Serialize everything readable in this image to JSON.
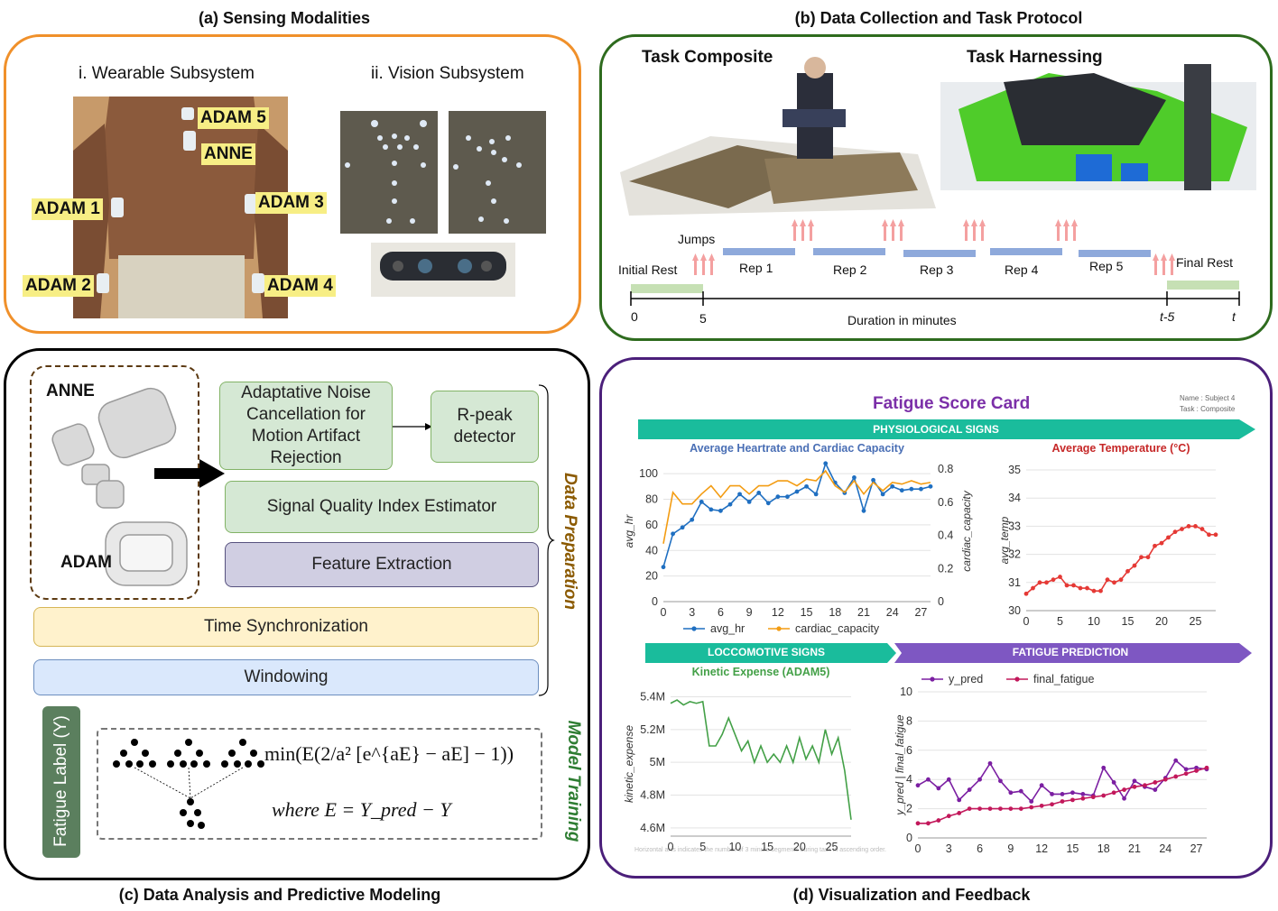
{
  "panel_a": {
    "title": "(a) Sensing Modalities",
    "wearable_title": "i. Wearable Subsystem",
    "vision_title": "ii. Vision Subsystem",
    "sensors": [
      "ADAM 5",
      "ANNE",
      "ADAM 1",
      "ADAM 3",
      "ADAM 2",
      "ADAM 4"
    ],
    "colors": {
      "border": "#f0902a",
      "tag": "#f7ee85"
    }
  },
  "panel_b": {
    "title": "(b) Data Collection and Task Protocol",
    "task1": "Task Composite",
    "task2": "Task Harnessing",
    "jumps": "Jumps",
    "initial_rest": "Initial Rest",
    "final_rest": "Final Rest",
    "reps": [
      "Rep 1",
      "Rep 2",
      "Rep 3",
      "Rep 4",
      "Rep 5"
    ],
    "ticks": [
      "0",
      "5",
      "t-5",
      "t"
    ],
    "duration_label": "Duration in minutes",
    "colors": {
      "border": "#2e6b1e",
      "rep": "#8ea9db",
      "rest": "#c6e0b4",
      "arrow": "#f4a0a0"
    }
  },
  "panel_c": {
    "title": "(c) Data Analysis and Predictive Modeling",
    "anne": "ANNE",
    "adam": "ADAM",
    "anc": "Adaptative Noise Cancellation for Motion Artifact Rejection",
    "rpeak": "R-peak detector",
    "sqi": "Signal Quality Index Estimator",
    "feature": "Feature Extraction",
    "sync": "Time Synchronization",
    "windowing": "Windowing",
    "data_prep": "Data Preparation",
    "model_training": "Model Training",
    "fatigue_label": "Fatigue Label (Y)",
    "formula_main": "min(E(2/a² [e^{aE} − aE] − 1))",
    "formula_where": "where E = Y_pred − Y",
    "colors": {
      "data_prep": "#8b5a00",
      "model_training": "#2e7d32",
      "label_box": "#5b7f5e"
    }
  },
  "panel_d": {
    "title": "(d) Visualization and Feedback",
    "card_title": "Fatigue Score Card",
    "meta_name": "Name : Subject 4",
    "meta_task": "Task : Composite",
    "physio_banner": "PHYSIOLOGICAL SIGNS",
    "loco_banner": "LOCCOMOTIVE SIGNS",
    "fatigue_banner": "FATIGUE PREDICTION",
    "footnote": "Horizontal axis indicates the number of 3 minute segments during task in ascending order.",
    "colors": {
      "border": "#4b1f7a",
      "teal": "#1abc9c",
      "purple": "#7e57c2",
      "title": "#7b2fa8"
    }
  },
  "chart_data": [
    {
      "type": "line",
      "title": "Average Heartrate and Cardiac Capacity",
      "ylabel": "avg_hr",
      "y2label": "cardiac_capacity",
      "xticks": [
        "0",
        "3",
        "6",
        "9",
        "12",
        "15",
        "18",
        "21",
        "24",
        "27"
      ],
      "yticks": [
        "0",
        "20",
        "40",
        "60",
        "80",
        "100"
      ],
      "y2ticks": [
        "0",
        "0.2",
        "0.4",
        "0.6",
        "0.8"
      ],
      "ylim": [
        0,
        110
      ],
      "y2lim": [
        0,
        0.85
      ],
      "x": [
        0,
        1,
        2,
        3,
        4,
        5,
        6,
        7,
        8,
        9,
        10,
        11,
        12,
        13,
        14,
        15,
        16,
        17,
        18,
        19,
        20,
        21,
        22,
        23,
        24,
        25,
        26,
        27,
        28
      ],
      "series": [
        {
          "name": "avg_hr",
          "color": "#1f6fc1",
          "axis": "left",
          "values": [
            27,
            53,
            58,
            64,
            78,
            72,
            71,
            76,
            84,
            78,
            85,
            77,
            82,
            82,
            86,
            90,
            84,
            108,
            93,
            85,
            97,
            71,
            95,
            84,
            90,
            87,
            88,
            88,
            90
          ]
        },
        {
          "name": "cardiac_capacity",
          "color": "#f39c12",
          "axis": "right",
          "values": [
            0.35,
            0.66,
            0.59,
            0.59,
            0.65,
            0.7,
            0.63,
            0.7,
            0.7,
            0.65,
            0.7,
            0.7,
            0.73,
            0.73,
            0.7,
            0.74,
            0.73,
            0.79,
            0.7,
            0.66,
            0.73,
            0.65,
            0.72,
            0.67,
            0.72,
            0.71,
            0.73,
            0.71,
            0.72
          ]
        }
      ],
      "legend": "bottom"
    },
    {
      "type": "line",
      "title": "Average Temperature (°C)",
      "ylabel": "avg_temp",
      "xticks": [
        "0",
        "5",
        "10",
        "15",
        "20",
        "25"
      ],
      "yticks": [
        "30",
        "31",
        "32",
        "33",
        "34",
        "35"
      ],
      "ylim": [
        30,
        35
      ],
      "x": [
        0,
        1,
        2,
        3,
        4,
        5,
        6,
        7,
        8,
        9,
        10,
        11,
        12,
        13,
        14,
        15,
        16,
        17,
        18,
        19,
        20,
        21,
        22,
        23,
        24,
        25,
        26,
        27,
        28
      ],
      "series": [
        {
          "name": "avg_temp",
          "color": "#e53935",
          "values": [
            30.6,
            30.8,
            31.0,
            31.0,
            31.1,
            31.2,
            30.9,
            30.9,
            30.8,
            30.8,
            30.7,
            30.7,
            31.1,
            31.0,
            31.1,
            31.4,
            31.6,
            31.9,
            31.9,
            32.3,
            32.4,
            32.6,
            32.8,
            32.9,
            33.0,
            33.0,
            32.9,
            32.7,
            32.7
          ]
        }
      ]
    },
    {
      "type": "line",
      "title": "Kinetic Expense (ADAM5)",
      "ylabel": "kinetic_expense",
      "xticks": [
        "0",
        "5",
        "10",
        "15",
        "20",
        "25"
      ],
      "yticks": [
        "4.6M",
        "4.8M",
        "5M",
        "5.2M",
        "5.4M"
      ],
      "ylim": [
        4.55,
        5.43
      ],
      "x": [
        0,
        1,
        2,
        3,
        4,
        5,
        6,
        7,
        8,
        9,
        10,
        11,
        12,
        13,
        14,
        15,
        16,
        17,
        18,
        19,
        20,
        21,
        22,
        23,
        24,
        25,
        26,
        27,
        28
      ],
      "series": [
        {
          "name": "kinetic_expense",
          "color": "#43a047",
          "values": [
            5.36,
            5.38,
            5.35,
            5.37,
            5.36,
            5.37,
            5.1,
            5.1,
            5.17,
            5.27,
            5.17,
            5.07,
            5.13,
            5.0,
            5.1,
            5.0,
            5.05,
            5.0,
            5.1,
            5.0,
            5.15,
            5.02,
            5.1,
            5.0,
            5.2,
            5.05,
            5.15,
            4.95,
            4.65
          ]
        }
      ]
    },
    {
      "type": "line",
      "ylabel": "y_pred | final_fatigue",
      "xticks": [
        "0",
        "3",
        "6",
        "9",
        "12",
        "15",
        "18",
        "21",
        "24",
        "27"
      ],
      "yticks": [
        "0",
        "2",
        "4",
        "6",
        "8",
        "10"
      ],
      "ylim": [
        0,
        10
      ],
      "x": [
        0,
        1,
        2,
        3,
        4,
        5,
        6,
        7,
        8,
        9,
        10,
        11,
        12,
        13,
        14,
        15,
        16,
        17,
        18,
        19,
        20,
        21,
        22,
        23,
        24,
        25,
        26,
        27,
        28
      ],
      "series": [
        {
          "name": "y_pred",
          "color": "#7b1fa2",
          "values": [
            3.6,
            4.0,
            3.4,
            4.0,
            2.6,
            3.3,
            4.0,
            5.1,
            3.9,
            3.1,
            3.2,
            2.5,
            3.6,
            3.0,
            3.0,
            3.1,
            3.0,
            2.9,
            4.8,
            3.8,
            2.7,
            3.9,
            3.5,
            3.3,
            4.1,
            5.3,
            4.7,
            4.8,
            4.7
          ]
        },
        {
          "name": "final_fatigue",
          "color": "#c2185b",
          "values": [
            1.0,
            1.0,
            1.2,
            1.5,
            1.7,
            2.0,
            2.0,
            2.0,
            2.0,
            2.0,
            2.0,
            2.1,
            2.2,
            2.3,
            2.5,
            2.6,
            2.7,
            2.8,
            2.9,
            3.1,
            3.3,
            3.5,
            3.6,
            3.8,
            4.0,
            4.2,
            4.4,
            4.6,
            4.8
          ]
        }
      ],
      "legend": "top"
    }
  ]
}
